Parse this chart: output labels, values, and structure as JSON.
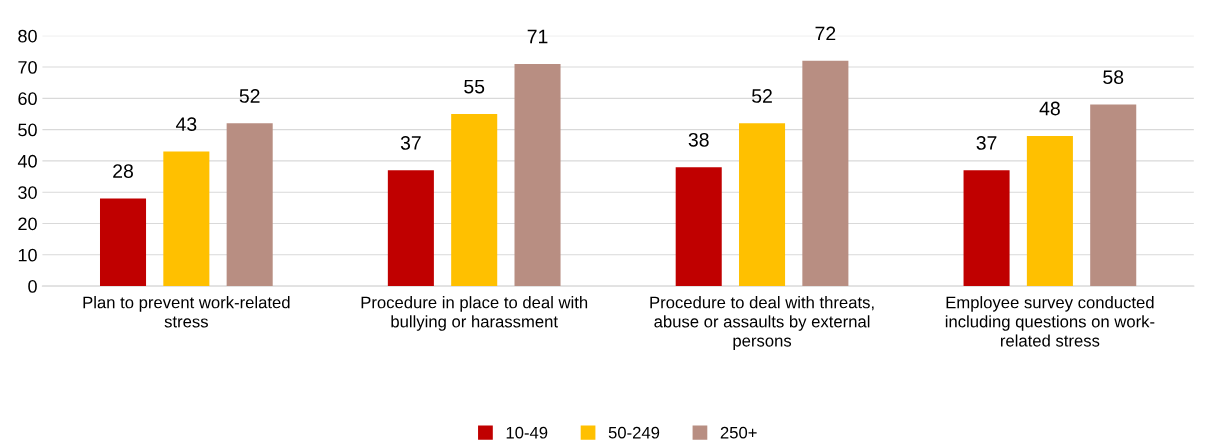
{
  "chart_data": {
    "type": "bar",
    "categories": [
      "Plan to prevent work-related\nstress",
      "Procedure in place to deal with\nbullying or harassment",
      "Procedure to deal with threats,\nabuse or assaults by external\npersons",
      "Employee survey conducted\nincluding questions on work-\nrelated stress"
    ],
    "series": [
      {
        "name": "10-49",
        "color": "#c00000",
        "values": [
          28,
          37,
          38,
          37
        ]
      },
      {
        "name": "50-249",
        "color": "#ffc000",
        "values": [
          43,
          55,
          52,
          48
        ]
      },
      {
        "name": "250+",
        "color": "#b88e82",
        "values": [
          52,
          71,
          72,
          58
        ]
      }
    ],
    "ylim": [
      0,
      80
    ],
    "yticks": [
      0,
      10,
      20,
      30,
      40,
      50,
      60,
      70,
      80
    ],
    "grid": "y",
    "legend": "bottom",
    "data_labels": true
  }
}
